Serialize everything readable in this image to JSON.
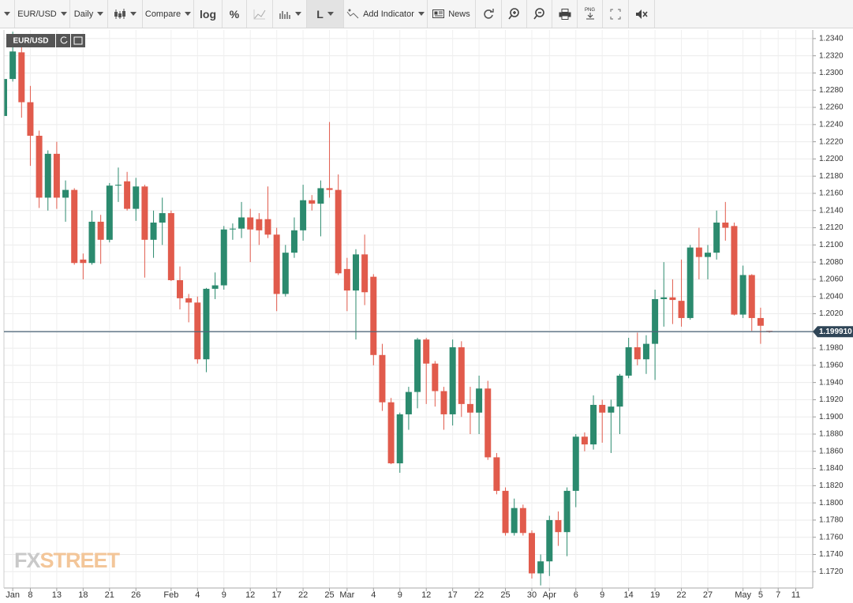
{
  "toolbar": {
    "symbol": "EUR/USD",
    "interval": "Daily",
    "compare": "Compare",
    "log": "log",
    "percent": "%",
    "line": "L",
    "indicator": "Add Indicator",
    "news": "News",
    "png": "PNG"
  },
  "chart_data": {
    "type": "candlestick",
    "symbol": "EUR/USD",
    "watermark": [
      "FX",
      "STREET"
    ],
    "up_color": "#2b8a6e",
    "down_color": "#e15b4c",
    "grid": true,
    "ylim": [
      1.1701,
      1.235
    ],
    "yticks": [
      {
        "value": 1.234,
        "label": "1.2340"
      },
      {
        "value": 1.232,
        "label": "1.2320"
      },
      {
        "value": 1.23,
        "label": "1.2300"
      },
      {
        "value": 1.228,
        "label": "1.2280"
      },
      {
        "value": 1.226,
        "label": "1.2260"
      },
      {
        "value": 1.224,
        "label": "1.2240"
      },
      {
        "value": 1.222,
        "label": "1.2220"
      },
      {
        "value": 1.22,
        "label": "1.2200"
      },
      {
        "value": 1.218,
        "label": "1.2180"
      },
      {
        "value": 1.216,
        "label": "1.2160"
      },
      {
        "value": 1.214,
        "label": "1.2140"
      },
      {
        "value": 1.212,
        "label": "1.2120"
      },
      {
        "value": 1.21,
        "label": "1.2100"
      },
      {
        "value": 1.208,
        "label": "1.2080"
      },
      {
        "value": 1.206,
        "label": "1.2060"
      },
      {
        "value": 1.204,
        "label": "1.2040"
      },
      {
        "value": 1.202,
        "label": "1.2020"
      },
      {
        "value": 1.2,
        "label": "1.2000"
      },
      {
        "value": 1.198,
        "label": "1.1980"
      },
      {
        "value": 1.196,
        "label": "1.1960"
      },
      {
        "value": 1.194,
        "label": "1.1940"
      },
      {
        "value": 1.192,
        "label": "1.1920"
      },
      {
        "value": 1.19,
        "label": "1.1900"
      },
      {
        "value": 1.188,
        "label": "1.1880"
      },
      {
        "value": 1.186,
        "label": "1.1860"
      },
      {
        "value": 1.184,
        "label": "1.1840"
      },
      {
        "value": 1.182,
        "label": "1.1820"
      },
      {
        "value": 1.18,
        "label": "1.1800"
      },
      {
        "value": 1.178,
        "label": "1.1780"
      },
      {
        "value": 1.176,
        "label": "1.1760"
      },
      {
        "value": 1.174,
        "label": "1.1740"
      },
      {
        "value": 1.172,
        "label": "1.1720"
      }
    ],
    "last_price": {
      "value": 1.19991,
      "label": "1.199910"
    },
    "categories": [
      null,
      "Jan",
      null,
      "8",
      null,
      null,
      "13",
      null,
      null,
      "18",
      null,
      null,
      "21",
      null,
      null,
      "26",
      null,
      null,
      null,
      "Feb",
      null,
      null,
      "4",
      null,
      null,
      "9",
      null,
      null,
      "12",
      null,
      null,
      "17",
      null,
      null,
      "22",
      null,
      null,
      "25",
      null,
      "Mar",
      null,
      null,
      "4",
      null,
      null,
      "9",
      null,
      null,
      "12",
      null,
      null,
      "17",
      null,
      null,
      "22",
      null,
      null,
      "25",
      null,
      null,
      "30",
      null,
      "Apr",
      null,
      null,
      "6",
      null,
      null,
      "9",
      null,
      null,
      "14",
      null,
      null,
      "19",
      null,
      null,
      "22",
      null,
      null,
      "27",
      null,
      null,
      null,
      "May",
      null,
      "5",
      null,
      "7",
      null,
      "11"
    ],
    "open": [
      1.225,
      1.2293,
      1.2324,
      1.2266,
      1.2227,
      1.2155,
      1.2206,
      1.2155,
      1.2164,
      1.2083,
      1.2079,
      1.2127,
      1.2106,
      1.2169,
      1.2174,
      1.2142,
      1.2168,
      1.2106,
      1.2126,
      1.2137,
      1.2059,
      1.2038,
      1.2033,
      1.1967,
      1.2049,
      1.2053,
      1.2118,
      1.2119,
      1.2132,
      1.213,
      1.213,
      1.2112,
      1.2043,
      1.2091,
      1.2117,
      1.2152,
      1.2148,
      1.2166,
      1.2164,
      1.2072,
      1.2047,
      1.2089,
      1.2063,
      1.1972,
      1.1917,
      1.1846,
      1.1903,
      1.1929,
      1.199,
      1.1962,
      1.193,
      1.1903,
      1.1981,
      1.1915,
      1.1905,
      1.1933,
      1.1853,
      1.1814,
      1.1765,
      1.1794,
      1.1765,
      1.1718,
      1.1732,
      1.178,
      1.1766,
      1.1814,
      1.1877,
      1.1868,
      1.1914,
      1.1905,
      1.1912,
      1.1948,
      1.1981,
      1.1967,
      1.1985,
      1.2037,
      1.2039,
      1.2035,
      1.2015,
      1.2097,
      1.2086,
      1.2091,
      1.2126,
      1.2122,
      1.2019,
      1.2065,
      1.2015,
      1.2,
      null,
      null,
      null
    ],
    "high": [
      1.231,
      1.2348,
      1.2338,
      1.2285,
      1.2233,
      1.221,
      1.222,
      1.2175,
      1.2166,
      1.209,
      1.214,
      1.2135,
      1.2172,
      1.219,
      1.2185,
      1.2178,
      1.217,
      1.214,
      1.2155,
      1.214,
      1.2075,
      1.2043,
      1.204,
      1.205,
      1.2068,
      1.2122,
      1.2125,
      1.215,
      1.2142,
      1.2137,
      1.2168,
      1.212,
      1.21,
      1.2132,
      1.217,
      1.2158,
      1.2175,
      1.2243,
      1.2182,
      1.2085,
      1.2095,
      1.2112,
      1.2066,
      1.1985,
      1.1922,
      1.1905,
      1.1935,
      1.1992,
      1.1992,
      1.1965,
      1.1935,
      1.199,
      1.1988,
      1.1935,
      1.1948,
      1.1942,
      1.1858,
      1.1818,
      1.1805,
      1.1798,
      1.1768,
      1.174,
      1.1785,
      1.179,
      1.1818,
      1.188,
      1.1882,
      1.1925,
      1.192,
      1.192,
      1.195,
      1.1992,
      1.1998,
      1.1995,
      1.2048,
      1.208,
      1.206,
      1.2083,
      1.21,
      1.212,
      1.21,
      1.214,
      1.215,
      1.2126,
      1.2076,
      1.2066,
      1.2027,
      1.2,
      null,
      null,
      null
    ],
    "low": [
      1.2245,
      1.229,
      1.2248,
      1.2192,
      1.2143,
      1.214,
      1.2142,
      1.2127,
      1.2077,
      1.206,
      1.2077,
      1.2078,
      1.2103,
      1.215,
      1.214,
      1.2128,
      1.2062,
      1.2085,
      1.21,
      1.2058,
      1.2025,
      1.201,
      1.1962,
      1.1952,
      1.2037,
      1.2048,
      1.2106,
      1.2108,
      1.208,
      1.21,
      1.2108,
      1.2023,
      1.204,
      1.2085,
      1.2105,
      1.214,
      1.211,
      1.2155,
      1.2065,
      1.2023,
      1.199,
      1.203,
      1.196,
      1.1907,
      1.1845,
      1.1835,
      1.1885,
      1.191,
      1.1915,
      1.1912,
      1.1885,
      1.189,
      1.19,
      1.188,
      1.188,
      1.185,
      1.181,
      1.1762,
      1.1762,
      1.1762,
      1.1712,
      1.1704,
      1.1715,
      1.175,
      1.1738,
      1.1795,
      1.186,
      1.1862,
      1.187,
      1.1858,
      1.188,
      1.1945,
      1.196,
      1.195,
      1.1943,
      1.2005,
      1.2008,
      1.2005,
      1.2013,
      1.206,
      1.206,
      1.2083,
      1.2105,
      1.2018,
      1.2015,
      1.2,
      1.1985,
      1.1998,
      null,
      null,
      null
    ],
    "close": [
      1.2293,
      1.2325,
      1.2266,
      1.2227,
      1.2155,
      1.2206,
      1.2155,
      1.2164,
      1.2079,
      1.2079,
      1.2127,
      1.2106,
      1.2169,
      1.217,
      1.2142,
      1.2168,
      1.2106,
      1.2126,
      1.2137,
      1.2059,
      1.2038,
      1.2033,
      1.1967,
      1.2049,
      1.2053,
      1.2118,
      1.2119,
      1.2132,
      1.2118,
      1.2117,
      1.2112,
      1.2043,
      1.2091,
      1.2117,
      1.2152,
      1.2148,
      1.2166,
      1.2164,
      1.2067,
      1.2047,
      1.2089,
      1.2045,
      1.1972,
      1.1917,
      1.1846,
      1.1903,
      1.1929,
      1.199,
      1.1962,
      1.193,
      1.1903,
      1.1981,
      1.1915,
      1.1905,
      1.1933,
      1.1853,
      1.1814,
      1.1765,
      1.1794,
      1.1765,
      1.1718,
      1.1732,
      1.178,
      1.1766,
      1.1814,
      1.1877,
      1.1868,
      1.1914,
      1.1905,
      1.1912,
      1.1948,
      1.1981,
      1.1967,
      1.1985,
      1.2037,
      1.2039,
      1.2036,
      1.2015,
      1.2097,
      1.2086,
      1.2091,
      1.2126,
      1.212,
      1.2019,
      1.2065,
      1.2015,
      1.2006,
      1.1999,
      null,
      null,
      null
    ]
  }
}
